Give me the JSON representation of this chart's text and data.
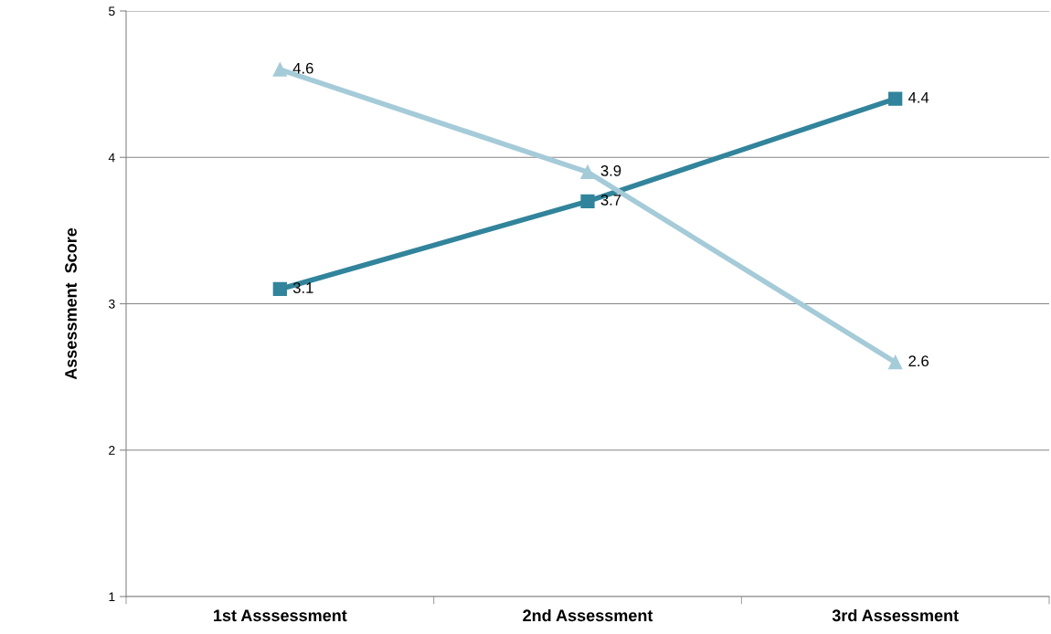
{
  "chart_data": {
    "type": "line",
    "ylabel": "Assessment  Score",
    "categories": [
      "1st Asssessment",
      "2nd Assessment",
      "3rd Assessment"
    ],
    "series": [
      {
        "color": "#31849b",
        "marker": "square",
        "values": [
          3.1,
          3.7,
          4.4
        ]
      },
      {
        "color": "#a5cbd8",
        "marker": "triangle",
        "values": [
          4.6,
          3.9,
          2.6
        ]
      }
    ],
    "ylim": [
      1,
      5
    ],
    "yticks": [
      1,
      2,
      3,
      4,
      5
    ],
    "grid": "y",
    "data_labels": true,
    "line_style": "solid"
  }
}
